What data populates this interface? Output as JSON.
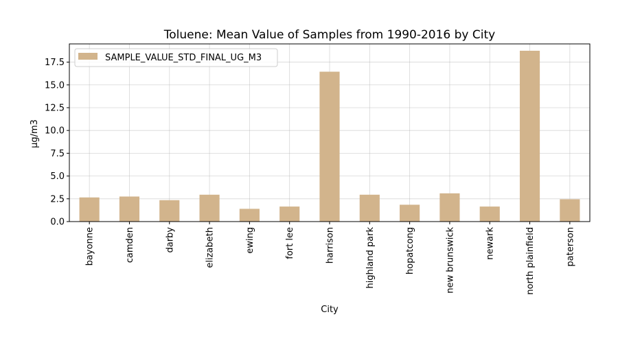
{
  "chart_data": {
    "type": "bar",
    "title": "Toluene: Mean Value of Samples from 1990-2016 by City",
    "xlabel": "City",
    "ylabel": "µg/m3",
    "ylim": [
      0,
      19.5
    ],
    "yticks": [
      "0.0",
      "2.5",
      "5.0",
      "7.5",
      "10.0",
      "12.5",
      "15.0",
      "17.5"
    ],
    "grid": true,
    "legend_position": "top-left",
    "categories": [
      "bayonne",
      "camden",
      "darby",
      "elizabeth",
      "ewing",
      "fort lee",
      "harrison",
      "highland park",
      "hopatcong",
      "new brunswick",
      "newark",
      "north plainfield",
      "paterson"
    ],
    "series": [
      {
        "name": "SAMPLE_VALUE_STD_FINAL_UG_M3",
        "color": "#d2b48c",
        "values": [
          2.65,
          2.75,
          2.35,
          2.95,
          1.4,
          1.65,
          16.45,
          2.95,
          1.85,
          3.1,
          1.65,
          18.75,
          2.45
        ]
      }
    ]
  }
}
